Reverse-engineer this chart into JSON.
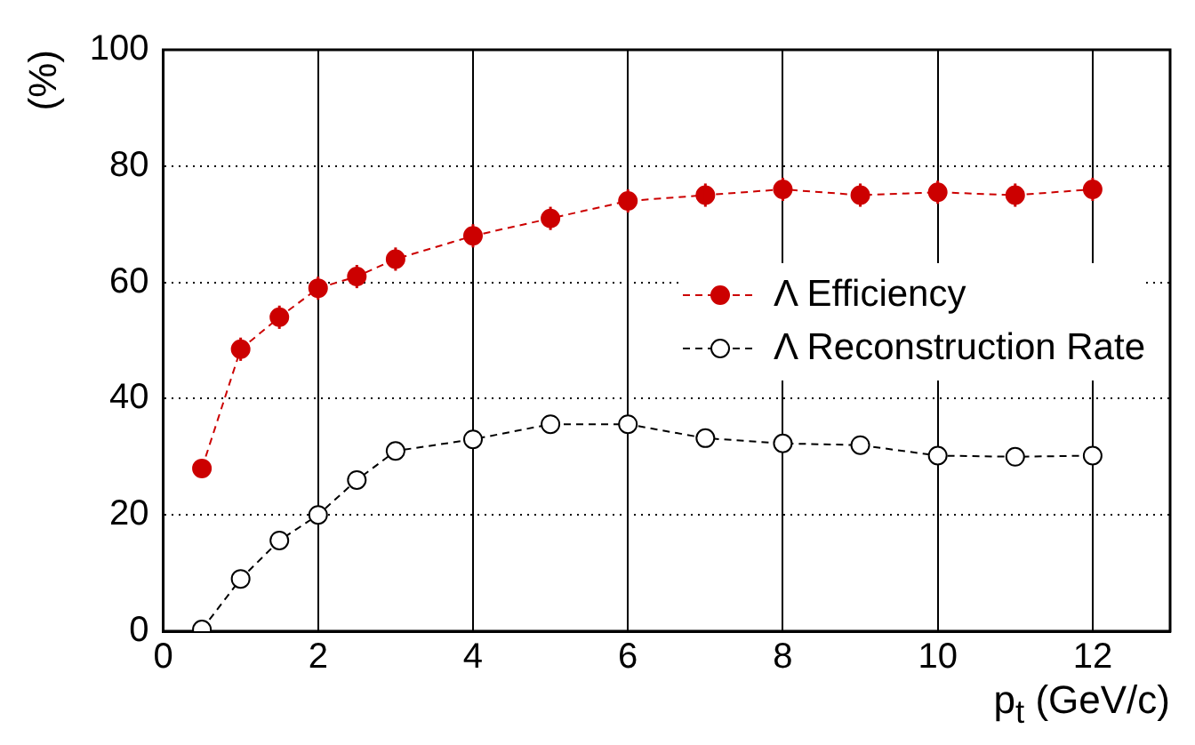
{
  "chart_data": {
    "type": "line",
    "xlabel": "p$_{t}$ (GeV/c)",
    "ylabel": "(%)",
    "x": [
      0.5,
      1,
      1.5,
      2,
      2.5,
      3,
      4,
      5,
      6,
      7,
      8,
      9,
      10,
      11,
      12
    ],
    "series": [
      {
        "name": "Λ Efficiency",
        "color": "#cc0000",
        "values": [
          28,
          48.5,
          54,
          59,
          61,
          64,
          68,
          71,
          74,
          75,
          76,
          75,
          75.5,
          75,
          76
        ],
        "errors": [
          1,
          2,
          2,
          2,
          2,
          2,
          2,
          2,
          2,
          2,
          2,
          2,
          2,
          2,
          2
        ]
      },
      {
        "name": "Λ Reconstruction Rate",
        "color": "#000000",
        "values": [
          0.3,
          9,
          15.6,
          20,
          26,
          31,
          33,
          35.6,
          35.6,
          33.2,
          32.3,
          32,
          30.2,
          30,
          30.2
        ]
      }
    ],
    "xlim": [
      0,
      13
    ],
    "xticks": [
      0,
      2,
      4,
      6,
      8,
      10,
      12
    ],
    "ylim": [
      0,
      100
    ],
    "yticks": [
      0,
      20,
      40,
      60,
      80,
      100
    ],
    "grid": true,
    "legend": "right",
    "marker": "circle",
    "line_style": "dashed"
  }
}
